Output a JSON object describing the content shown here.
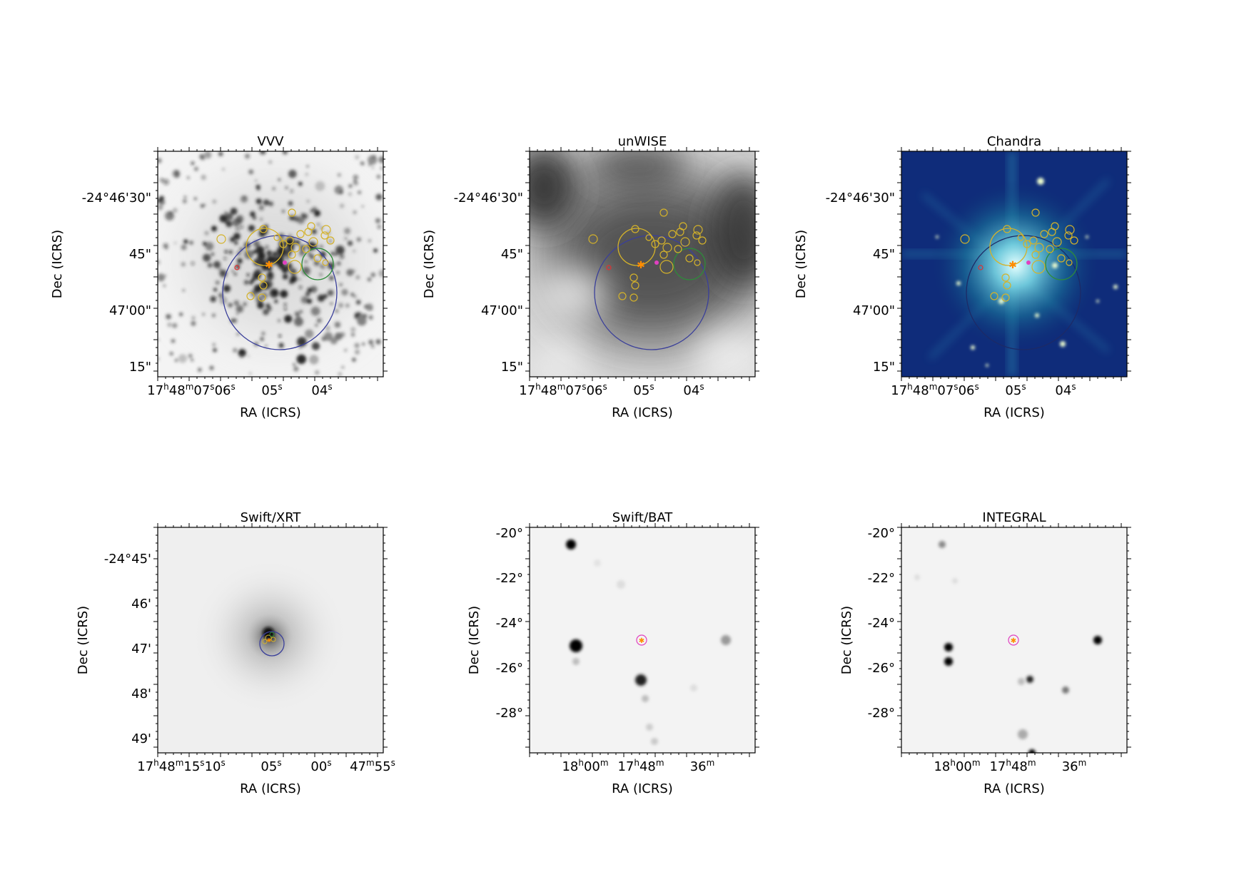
{
  "panels": [
    {
      "id": "vvv",
      "title": "VVV",
      "xlabel": "RA (ICRS)",
      "ylabel": "Dec (ICRS)",
      "xticks": [
        [
          "17",
          "48",
          "07",
          "06",
          ""
        ],
        [
          "05",
          ""
        ],
        [
          "04",
          ""
        ]
      ],
      "yticks": [
        "-24°46'30\"",
        "45\"",
        "47'00\"",
        "15\""
      ],
      "style": "optical"
    },
    {
      "id": "unwise",
      "title": "unWISE",
      "xlabel": "RA (ICRS)",
      "ylabel": "Dec (ICRS)",
      "yticks": [
        "-24°46'30\"",
        "45\"",
        "47'00\"",
        "15\""
      ],
      "style": "infrared"
    },
    {
      "id": "chandra",
      "title": "Chandra",
      "xlabel": "RA (ICRS)",
      "ylabel": "Dec (ICRS)",
      "yticks": [
        "-24°46'30\"",
        "45\"",
        "47'00\"",
        "15\""
      ],
      "style": "xray-color"
    },
    {
      "id": "swift-xrt",
      "title": "Swift/XRT",
      "xlabel": "RA (ICRS)",
      "ylabel": "Dec (ICRS)",
      "yticks": [
        "-24°45'",
        "46'",
        "47'",
        "48'",
        "49'"
      ],
      "style": "xrt"
    },
    {
      "id": "swift-bat",
      "title": "Swift/BAT",
      "xlabel": "RA (ICRS)",
      "ylabel": "Dec (ICRS)",
      "yticks": [
        "-20°",
        "-22°",
        "-24°",
        "-26°",
        "-28°"
      ],
      "style": "hard-xray"
    },
    {
      "id": "integral",
      "title": "INTEGRAL",
      "xlabel": "RA (ICRS)",
      "ylabel": "Dec (ICRS)",
      "yticks": [
        "-20°",
        "-22°",
        "-24°",
        "-26°",
        "-28°"
      ],
      "style": "hard-xray"
    }
  ],
  "ra_labels_small_field": {
    "h": "17",
    "m": "48",
    "s1": "07",
    "s2": "06",
    "s3": "05",
    "s4": "04"
  },
  "ra_labels_xrt": {
    "h": "17",
    "m": "48",
    "s1": "15",
    "s2": "10",
    "s3": "05",
    "s4": "00",
    "m2": "47",
    "s5": "55"
  },
  "ra_labels_wide": {
    "h1": "18",
    "m1": "00",
    "h2": "17",
    "m2": "48",
    "m3": "36"
  },
  "colors": {
    "catalog_yellow": "#d4b22a",
    "error_circle_blue": "#3a3f9a",
    "green_circle": "#2e8b3a",
    "red_marker": "#e03030",
    "magenta_marker": "#e040c0",
    "orange_star": "#ff8c00"
  }
}
